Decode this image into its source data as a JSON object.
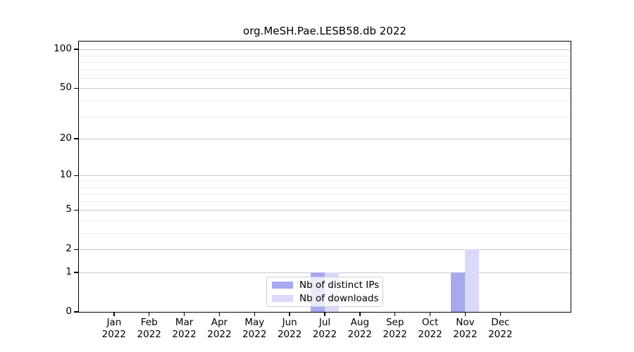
{
  "chart_data": {
    "type": "bar",
    "title": "org.MeSH.Pae.LESB58.db 2022",
    "categories": [
      "Jan",
      "Feb",
      "Mar",
      "Apr",
      "May",
      "Jun",
      "Jul",
      "Aug",
      "Sep",
      "Oct",
      "Nov",
      "Dec"
    ],
    "category_year": "2022",
    "series": [
      {
        "name": "Nb of distinct IPs",
        "color": "#a8a8f0",
        "values": [
          0,
          0,
          0,
          0,
          0,
          0,
          1,
          0,
          0,
          0,
          1,
          0
        ]
      },
      {
        "name": "Nb of downloads",
        "color": "#dadaf8",
        "values": [
          0,
          0,
          0,
          0,
          0,
          0,
          1,
          0,
          0,
          0,
          2,
          0
        ]
      }
    ],
    "yscale": "log1p",
    "ylim": [
      0,
      115
    ],
    "yticks": [
      0,
      1,
      2,
      5,
      10,
      20,
      50,
      100
    ],
    "minor_yticks": [
      3,
      4,
      6,
      7,
      8,
      9,
      30,
      40,
      60,
      70,
      80,
      90,
      110
    ],
    "grid": true,
    "legend_position": "lower center",
    "xlabel": "",
    "ylabel": ""
  },
  "colors": {
    "major_grid": "#c9c9c9",
    "minor_grid": "#ececec",
    "spine": "#000000",
    "background": "#ffffff"
  }
}
